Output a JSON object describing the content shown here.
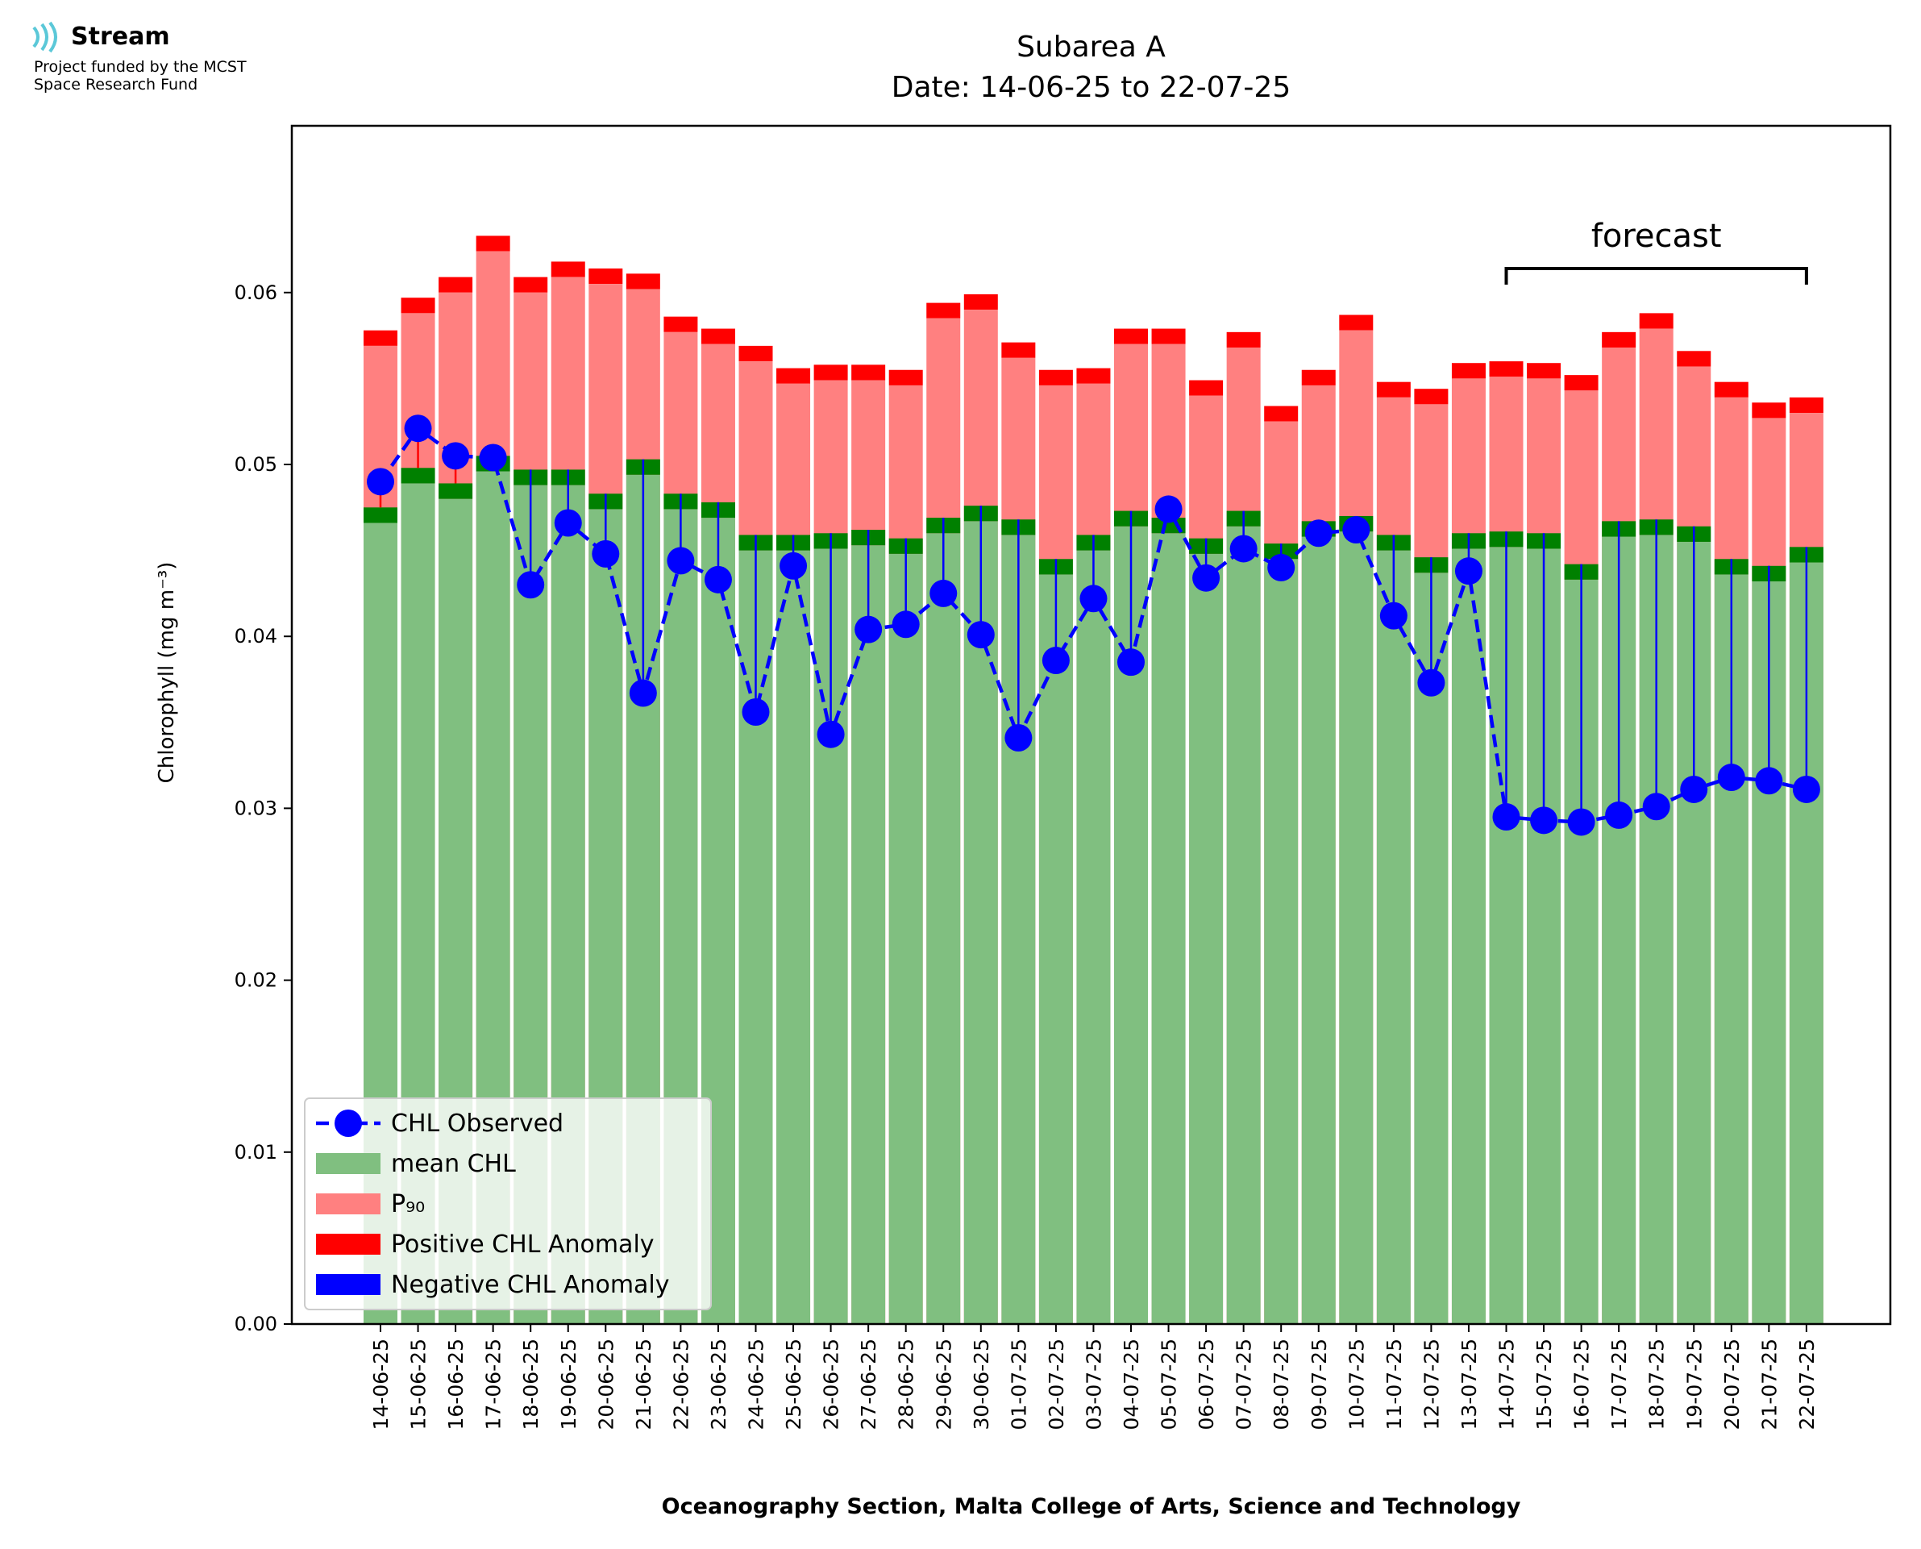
{
  "logo": {
    "name": "Stream",
    "line1": "Project funded by the MCST",
    "line2": "Space Research Fund",
    "color": "#5bc8d8"
  },
  "forecast_label": "forecast",
  "chart_data": {
    "type": "bar",
    "title": "Subarea A",
    "subtitle": "Date: 14-06-25 to 22-07-25",
    "xlabel": "Oceanography Section, Malta College of Arts, Science and Technology",
    "ylabel": "Chlorophyll (mg m⁻³)",
    "ylim": [
      0,
      0.0697
    ],
    "yticks": [
      "0.00",
      "0.01",
      "0.02",
      "0.03",
      "0.04",
      "0.05",
      "0.06"
    ],
    "categories": [
      "14-06-25",
      "15-06-25",
      "16-06-25",
      "17-06-25",
      "18-06-25",
      "19-06-25",
      "20-06-25",
      "21-06-25",
      "22-06-25",
      "23-06-25",
      "24-06-25",
      "25-06-25",
      "26-06-25",
      "27-06-25",
      "28-06-25",
      "29-06-25",
      "30-06-25",
      "01-07-25",
      "02-07-25",
      "03-07-25",
      "04-07-25",
      "05-07-25",
      "06-07-25",
      "07-07-25",
      "08-07-25",
      "09-07-25",
      "10-07-25",
      "11-07-25",
      "12-07-25",
      "13-07-25",
      "14-07-25",
      "15-07-25",
      "16-07-25",
      "17-07-25",
      "18-07-25",
      "19-07-25",
      "20-07-25",
      "21-07-25",
      "22-07-25"
    ],
    "forecast_range": [
      "14-07-25",
      "22-07-25"
    ],
    "legend_position": "lower-left",
    "colors": {
      "mean": "#80bf80",
      "mean_cap": "#008000",
      "p90": "#ff8080",
      "p90_cap": "#ff0000",
      "observed": "#0000ff",
      "negative": "#0000ff"
    },
    "series": [
      {
        "name": "CHL Observed",
        "values": [
          0.049,
          0.0521,
          0.0505,
          0.0504,
          0.043,
          0.0466,
          0.0448,
          0.0367,
          0.0444,
          0.0433,
          0.0356,
          0.0441,
          0.0343,
          0.0404,
          0.0407,
          0.0425,
          0.0401,
          0.0341,
          0.0386,
          0.0422,
          0.0385,
          0.0474,
          0.0434,
          0.0451,
          0.044,
          0.046,
          0.0462,
          0.0412,
          0.0373,
          0.0438,
          0.0295,
          0.0293,
          0.0292,
          0.0296,
          0.0301,
          0.0311,
          0.0318,
          0.0316,
          0.0311
        ]
      },
      {
        "name": "mean CHL",
        "values": [
          0.0475,
          0.0498,
          0.0489,
          0.0505,
          0.0497,
          0.0497,
          0.0483,
          0.0503,
          0.0483,
          0.0478,
          0.0459,
          0.0459,
          0.046,
          0.0462,
          0.0457,
          0.0469,
          0.0476,
          0.0468,
          0.0445,
          0.0459,
          0.0473,
          0.0469,
          0.0457,
          0.0473,
          0.0454,
          0.0467,
          0.047,
          0.0459,
          0.0446,
          0.046,
          0.0461,
          0.046,
          0.0442,
          0.0467,
          0.0468,
          0.0464,
          0.0445,
          0.0441,
          0.0452
        ]
      },
      {
        "name": "P₉₀",
        "values": [
          0.0578,
          0.0597,
          0.0609,
          0.0633,
          0.0609,
          0.0618,
          0.0614,
          0.0611,
          0.0586,
          0.0579,
          0.0569,
          0.0556,
          0.0558,
          0.0558,
          0.0555,
          0.0594,
          0.0599,
          0.0571,
          0.0555,
          0.0556,
          0.0579,
          0.0579,
          0.0549,
          0.0577,
          0.0534,
          0.0555,
          0.0587,
          0.0548,
          0.0544,
          0.0559,
          0.056,
          0.0559,
          0.0552,
          0.0577,
          0.0588,
          0.0566,
          0.0548,
          0.0536,
          0.0539
        ]
      },
      {
        "name": "Positive CHL Anomaly"
      },
      {
        "name": "Negative CHL Anomaly"
      }
    ]
  }
}
